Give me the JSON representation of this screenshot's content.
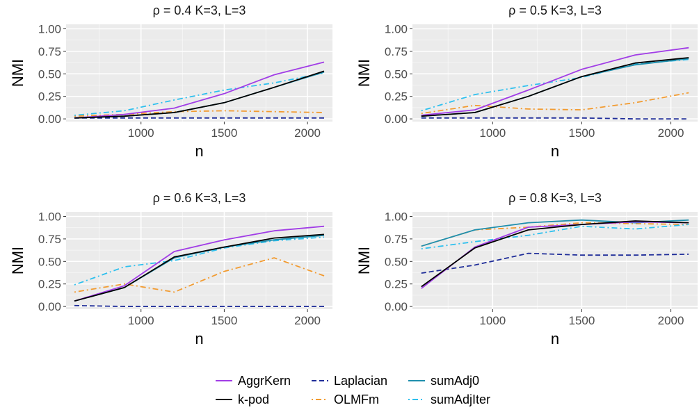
{
  "chart_data": [
    {
      "type": "line",
      "title": "ρ = 0.4 K=3, L=3",
      "xlabel": "n",
      "ylabel": "NMI",
      "xlim": [
        550,
        2150
      ],
      "ylim": [
        -0.03,
        1.05
      ],
      "xticks": [
        1000,
        1500,
        2000
      ],
      "xtick_labels": [
        "1000",
        "1500",
        "2000"
      ],
      "yticks": [
        0,
        0.25,
        0.5,
        0.75,
        1
      ],
      "ytick_labels": [
        "0.00",
        "0.25",
        "0.50",
        "0.75",
        "1.00"
      ],
      "grid": true,
      "x": [
        600,
        900,
        1200,
        1500,
        1800,
        2100
      ],
      "series": [
        {
          "name": "AggrKern",
          "values": [
            0.01,
            0.05,
            0.12,
            0.28,
            0.49,
            0.63
          ]
        },
        {
          "name": "k-pod",
          "values": [
            0.01,
            0.03,
            0.07,
            0.18,
            0.35,
            0.53
          ]
        },
        {
          "name": "Laplacian",
          "values": [
            0.01,
            0.01,
            0.01,
            0.01,
            0.01,
            0.01
          ]
        },
        {
          "name": "OLMFm",
          "values": [
            0.03,
            0.05,
            0.08,
            0.09,
            0.08,
            0.07
          ]
        },
        {
          "name": "sumAdj0",
          "values": [
            0.01,
            0.03,
            0.07,
            0.18,
            0.35,
            0.52
          ]
        },
        {
          "name": "sumAdjIter",
          "values": [
            0.04,
            0.09,
            0.21,
            0.32,
            0.4,
            0.51
          ]
        }
      ]
    },
    {
      "type": "line",
      "title": "ρ = 0.5 K=3, L=3",
      "xlabel": "n",
      "ylabel": "NMI",
      "xlim": [
        550,
        2150
      ],
      "ylim": [
        -0.03,
        1.05
      ],
      "xticks": [
        1000,
        1500,
        2000
      ],
      "xtick_labels": [
        "1000",
        "1500",
        "2000"
      ],
      "yticks": [
        0,
        0.25,
        0.5,
        0.75,
        1
      ],
      "ytick_labels": [
        "0.00",
        "0.25",
        "0.50",
        "0.75",
        "1.00"
      ],
      "grid": true,
      "x": [
        600,
        900,
        1200,
        1500,
        1800,
        2100
      ],
      "series": [
        {
          "name": "AggrKern",
          "values": [
            0.04,
            0.1,
            0.32,
            0.55,
            0.71,
            0.79
          ]
        },
        {
          "name": "k-pod",
          "values": [
            0.03,
            0.07,
            0.25,
            0.47,
            0.62,
            0.68
          ]
        },
        {
          "name": "Laplacian",
          "values": [
            0.01,
            0.01,
            0.01,
            0.01,
            0.0,
            0.0
          ]
        },
        {
          "name": "OLMFm",
          "values": [
            0.06,
            0.15,
            0.11,
            0.1,
            0.18,
            0.29
          ]
        },
        {
          "name": "sumAdj0",
          "values": [
            0.03,
            0.07,
            0.25,
            0.47,
            0.6,
            0.67
          ]
        },
        {
          "name": "sumAdjIter",
          "values": [
            0.09,
            0.27,
            0.37,
            0.46,
            0.61,
            0.66
          ]
        }
      ]
    },
    {
      "type": "line",
      "title": "ρ = 0.6 K=3, L=3",
      "xlabel": "n",
      "ylabel": "NMI",
      "xlim": [
        550,
        2150
      ],
      "ylim": [
        -0.03,
        1.05
      ],
      "xticks": [
        1000,
        1500,
        2000
      ],
      "xtick_labels": [
        "1000",
        "1500",
        "2000"
      ],
      "yticks": [
        0,
        0.25,
        0.5,
        0.75,
        1
      ],
      "ytick_labels": [
        "0.00",
        "0.25",
        "0.50",
        "0.75",
        "1.00"
      ],
      "grid": true,
      "x": [
        600,
        900,
        1200,
        1500,
        1800,
        2100
      ],
      "series": [
        {
          "name": "AggrKern",
          "values": [
            0.06,
            0.23,
            0.61,
            0.74,
            0.84,
            0.89
          ]
        },
        {
          "name": "k-pod",
          "values": [
            0.06,
            0.21,
            0.55,
            0.66,
            0.76,
            0.8
          ]
        },
        {
          "name": "Laplacian",
          "values": [
            0.01,
            0.0,
            0.0,
            0.0,
            0.0,
            0.0
          ]
        },
        {
          "name": "OLMFm",
          "values": [
            0.16,
            0.25,
            0.16,
            0.39,
            0.54,
            0.34
          ]
        },
        {
          "name": "sumAdj0",
          "values": [
            0.06,
            0.21,
            0.54,
            0.66,
            0.74,
            0.79
          ]
        },
        {
          "name": "sumAdjIter",
          "values": [
            0.24,
            0.44,
            0.51,
            0.65,
            0.73,
            0.77
          ]
        }
      ]
    },
    {
      "type": "line",
      "title": "ρ = 0.8 K=3, L=3",
      "xlabel": "n",
      "ylabel": "NMI",
      "xlim": [
        550,
        2150
      ],
      "ylim": [
        -0.03,
        1.05
      ],
      "xticks": [
        1000,
        1500,
        2000
      ],
      "xtick_labels": [
        "1000",
        "1500",
        "2000"
      ],
      "yticks": [
        0,
        0.25,
        0.5,
        0.75,
        1
      ],
      "ytick_labels": [
        "0.00",
        "0.25",
        "0.50",
        "0.75",
        "1.00"
      ],
      "grid": true,
      "x": [
        600,
        900,
        1200,
        1500,
        1800,
        2100
      ],
      "series": [
        {
          "name": "AggrKern",
          "values": [
            0.2,
            0.66,
            0.88,
            0.91,
            0.94,
            0.93
          ]
        },
        {
          "name": "k-pod",
          "values": [
            0.22,
            0.65,
            0.85,
            0.91,
            0.95,
            0.93
          ]
        },
        {
          "name": "Laplacian",
          "values": [
            0.37,
            0.46,
            0.59,
            0.57,
            0.57,
            0.58
          ]
        },
        {
          "name": "OLMFm",
          "values": [
            0.67,
            0.85,
            0.88,
            0.93,
            0.92,
            0.91
          ]
        },
        {
          "name": "sumAdj0",
          "values": [
            0.67,
            0.85,
            0.93,
            0.96,
            0.93,
            0.96
          ]
        },
        {
          "name": "sumAdjIter",
          "values": [
            0.64,
            0.72,
            0.79,
            0.89,
            0.86,
            0.91
          ]
        }
      ]
    }
  ],
  "legend": {
    "placement": "bottom",
    "entries": [
      {
        "name": "AggrKern",
        "color": "#a13de6",
        "dash": "solid"
      },
      {
        "name": "k-pod",
        "color": "#000000",
        "dash": "solid"
      },
      {
        "name": "Laplacian",
        "color": "#1f2d99",
        "dash": "dashed"
      },
      {
        "name": "OLMFm",
        "color": "#f29b30",
        "dash": "dotdash"
      },
      {
        "name": "sumAdj0",
        "color": "#1f8fad",
        "dash": "solid"
      },
      {
        "name": "sumAdjIter",
        "color": "#2ec0ee",
        "dash": "dotdash"
      }
    ]
  }
}
